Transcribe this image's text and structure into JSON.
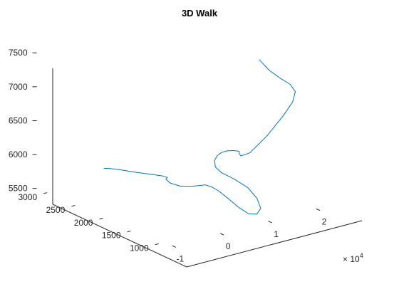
{
  "chart_data": {
    "type": "line",
    "projection": "3d",
    "title": "3D Walk",
    "xlabel": "",
    "ylabel": "",
    "zlabel": "",
    "x_exponent_label": "× 10",
    "x_exponent_power": "4",
    "xlim": [
      -1.2,
      2.2
    ],
    "ylim": [
      800,
      3200
    ],
    "zlim": [
      5500,
      7600
    ],
    "x_ticks": [
      -1,
      0,
      1,
      2
    ],
    "x_tick_labels": [
      "-1",
      "0",
      "1",
      "2"
    ],
    "y_ticks": [
      1000,
      1500,
      2000,
      2500,
      3000
    ],
    "y_tick_labels": [
      "1000",
      "1500",
      "2000",
      "2500",
      "3000"
    ],
    "z_ticks": [
      5500,
      6000,
      6500,
      7000,
      7500
    ],
    "z_tick_labels": [
      "5500",
      "6000",
      "6500",
      "7000",
      "7500"
    ],
    "grid": false,
    "line_color": "#0072BD",
    "series": [
      {
        "x": [
          -1.15,
          -1.06,
          -0.89,
          -0.66,
          -0.43,
          -0.28,
          -0.2,
          -0.21,
          -0.17,
          -0.02,
          0.17,
          0.33,
          0.48,
          0.58,
          0.64,
          0.67,
          0.69,
          0.75,
          0.87,
          1.0,
          1.06,
          1.01,
          0.89,
          0.78,
          0.8,
          0.92,
          1.08,
          1.24,
          1.39,
          1.51,
          1.56,
          1.47,
          1.33,
          1.26,
          1.38,
          1.61,
          1.84,
          2.01,
          2.08,
          2.06,
          2.01,
          1.99
        ],
        "y": [
          1960,
          1940,
          1880,
          1790,
          1700,
          1650,
          1640,
          1660,
          1620,
          1570,
          1550,
          1550,
          1550,
          1520,
          1440,
          1300,
          1130,
          1000,
          960,
          1000,
          1120,
          1240,
          1380,
          1520,
          1640,
          1760,
          1850,
          1910,
          1940,
          1920,
          1870,
          1790,
          1640,
          1420,
          1220,
          1120,
          1150,
          1250,
          1400,
          1550,
          1720,
          1880
        ],
        "z": [
          6255,
          6245,
          6215,
          6170,
          6130,
          6100,
          6070,
          6040,
          5990,
          5935,
          5905,
          5885,
          5870,
          5835,
          5790,
          5730,
          5660,
          5600,
          5590,
          5635,
          5730,
          5850,
          5945,
          6010,
          6040,
          6070,
          6080,
          6075,
          6060,
          6050,
          6050,
          6060,
          6110,
          6250,
          6550,
          6850,
          7000,
          7080,
          7120,
          7150,
          7220,
          7320
        ]
      }
    ]
  }
}
